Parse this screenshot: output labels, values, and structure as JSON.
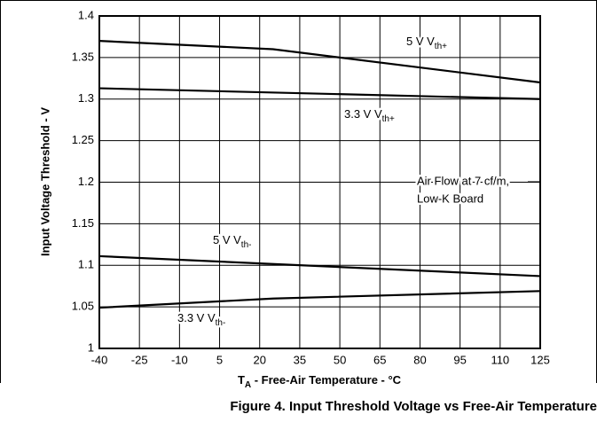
{
  "chart_data": {
    "type": "line",
    "title": "Figure 4. Input Threshold Voltage vs Free-Air Temperature",
    "x_label": "T",
    "x_label_sub": "A",
    "x_label_rest": " - Free-Air Temperature - °C",
    "y_label": "Input Voltage Threshold - V",
    "annotation": [
      "Air Flow at 7 cf/m,",
      "Low-K Board"
    ],
    "xlim": [
      -40,
      125
    ],
    "xticks": [
      -40,
      -25,
      -10,
      5,
      20,
      35,
      50,
      65,
      80,
      95,
      110,
      125
    ],
    "ylim": [
      1,
      1.4
    ],
    "yticks": [
      1,
      1.05,
      1.1,
      1.15,
      1.2,
      1.25,
      1.3,
      1.35,
      1.4
    ],
    "grid": true,
    "series": [
      {
        "label": "5 V V",
        "sub": "th+",
        "color": "#000000",
        "x": [
          -40,
          25,
          125
        ],
        "values": [
          1.37,
          1.36,
          1.32
        ]
      },
      {
        "label": "3.3 V V",
        "sub": "th+",
        "color": "#000000",
        "x": [
          -40,
          125
        ],
        "values": [
          1.313,
          1.3
        ]
      },
      {
        "label": "5 V V",
        "sub": "th-",
        "color": "#000000",
        "x": [
          -40,
          125
        ],
        "values": [
          1.111,
          1.087
        ]
      },
      {
        "label": "3.3 V V",
        "sub": "th-",
        "color": "#000000",
        "x": [
          -40,
          25,
          125
        ],
        "values": [
          1.049,
          1.06,
          1.069
        ]
      }
    ]
  }
}
